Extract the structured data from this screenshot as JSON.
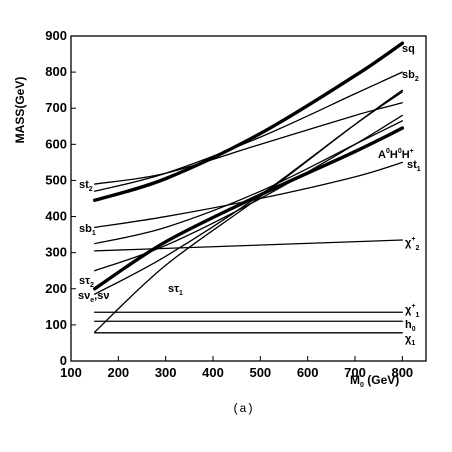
{
  "chart_data": {
    "type": "line",
    "title": "",
    "xlabel": "M0 (GeV)",
    "ylabel": "MASS(GeV)",
    "caption": "(a)",
    "xlim": [
      100,
      850
    ],
    "ylim": [
      0,
      900
    ],
    "x_ticks": [
      100,
      200,
      300,
      400,
      500,
      600,
      700,
      800
    ],
    "y_ticks": [
      0,
      100,
      200,
      300,
      400,
      500,
      600,
      700,
      800,
      900
    ],
    "grid": false,
    "series": [
      {
        "name": "sq",
        "x": [
          150,
          300,
          500,
          700,
          800
        ],
        "y": [
          445,
          505,
          630,
          790,
          880
        ],
        "weight": "heavy"
      },
      {
        "name": "sb2",
        "x": [
          150,
          300,
          500,
          700,
          800
        ],
        "y": [
          470,
          520,
          620,
          740,
          800
        ],
        "weight": "normal"
      },
      {
        "name": "H+ H0 A0",
        "x": [
          150,
          300,
          500,
          700,
          800
        ],
        "y": [
          200,
          330,
          460,
          580,
          645
        ],
        "weight": "heavy"
      },
      {
        "name": "st2",
        "x": [
          150,
          300,
          500,
          700,
          800
        ],
        "y": [
          490,
          520,
          600,
          680,
          715
        ],
        "weight": "normal"
      },
      {
        "name": "st1",
        "x": [
          150,
          300,
          500,
          700,
          800
        ],
        "y": [
          370,
          400,
          450,
          510,
          550
        ],
        "weight": "normal"
      },
      {
        "name": "sb1",
        "x": [
          150,
          300,
          500,
          700,
          800
        ],
        "y": [
          325,
          370,
          470,
          600,
          665
        ],
        "weight": "normal"
      },
      {
        "name": "stau2",
        "x": [
          150,
          300,
          500,
          700,
          800
        ],
        "y": [
          250,
          320,
          450,
          600,
          680
        ],
        "weight": "normal"
      },
      {
        "name": "snu_e",
        "x": [
          150,
          300,
          500,
          700,
          800
        ],
        "y": [
          185,
          290,
          460,
          655,
          745
        ],
        "weight": "normal"
      },
      {
        "name": "stau1",
        "x": [
          150,
          300,
          500,
          700,
          800
        ],
        "y": [
          80,
          265,
          455,
          655,
          750
        ],
        "weight": "normal"
      },
      {
        "name": "chi+2",
        "x": [
          150,
          800
        ],
        "y": [
          305,
          335
        ],
        "weight": "normal"
      },
      {
        "name": "chi+1",
        "x": [
          150,
          800
        ],
        "y": [
          135,
          135
        ],
        "weight": "normal"
      },
      {
        "name": "h0",
        "x": [
          150,
          800
        ],
        "y": [
          110,
          110
        ],
        "weight": "normal"
      },
      {
        "name": "chi0_1",
        "x": [
          150,
          800
        ],
        "y": [
          78,
          78
        ],
        "weight": "normal"
      }
    ],
    "annotations": {
      "sq": {
        "main": "sq"
      },
      "sb2": {
        "main": "sb",
        "sub": "2"
      },
      "higgs": {
        "main": "A",
        "sup1": "0",
        "mid": "H",
        "sup2": "0",
        "end": "H",
        "sup3": "+"
      },
      "st1": {
        "main": "st",
        "sub": "1"
      },
      "chi2": {
        "main": "χ",
        "sup": "+",
        "sub": "2"
      },
      "chi1": {
        "main": "χ",
        "sup": "+",
        "sub": "1"
      },
      "h0": {
        "main": "h",
        "sub": "0"
      },
      "chi01": {
        "main": "χ",
        "sub": "1"
      },
      "st2": {
        "main": "st",
        "sub": "2"
      },
      "sb1": {
        "main": "sb",
        "sub": "1"
      },
      "stau2": {
        "main": "sτ",
        "sub": "2"
      },
      "snu": {
        "main": "sν",
        "sub": "e",
        "tail": ",sν"
      },
      "stau1": {
        "main": "sτ",
        "sub": "1"
      }
    }
  },
  "colors": {
    "line": "#000000",
    "background": "#ffffff"
  }
}
